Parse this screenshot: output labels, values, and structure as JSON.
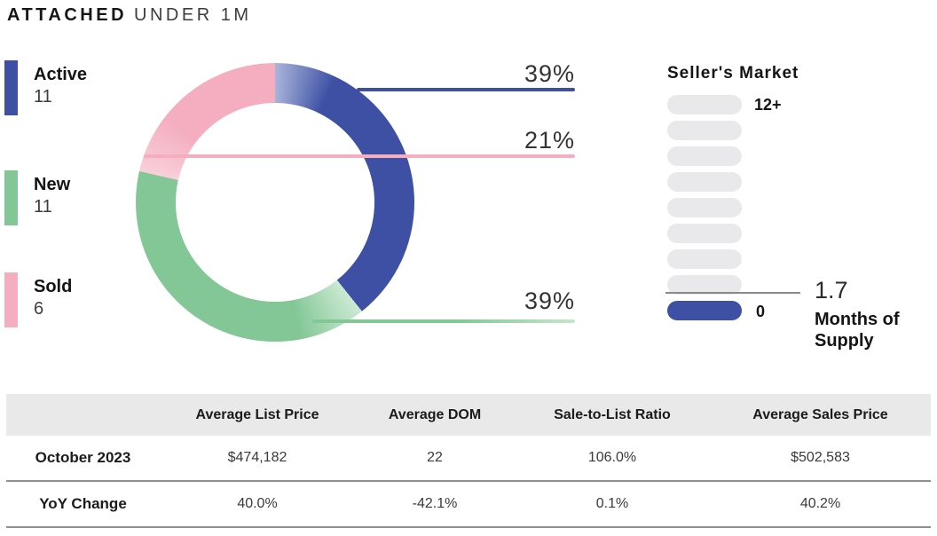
{
  "title": {
    "primary": "ATTACHED",
    "secondary": "UNDER 1M"
  },
  "legend": {
    "items": [
      {
        "label": "Active",
        "value": "11",
        "color": "#3d50a4"
      },
      {
        "label": "New",
        "value": "11",
        "color": "#82c795"
      },
      {
        "label": "Sold",
        "value": "6",
        "color": "#f4aec0"
      }
    ]
  },
  "donut": {
    "callouts": [
      {
        "label": "39%",
        "series": "Active",
        "color": "#3d50a4"
      },
      {
        "label": "21%",
        "series": "Sold",
        "color": "#f4aec0"
      },
      {
        "label": "39%",
        "series": "New",
        "color": "#82c795"
      }
    ]
  },
  "gauge": {
    "title": "Seller's Market",
    "max_label": "12+",
    "min_label": "0",
    "value": "1.7",
    "unit": "Months of Supply",
    "fill_color": "#3d50a4",
    "track_color": "#e9e9eb"
  },
  "table": {
    "headers": [
      "",
      "Average List Price",
      "Average DOM",
      "Sale-to-List Ratio",
      "Average Sales Price"
    ],
    "rows": [
      {
        "label": "October 2023",
        "cells": [
          "$474,182",
          "22",
          "106.0%",
          "$502,583"
        ]
      },
      {
        "label": "YoY Change",
        "cells": [
          "40.0%",
          "-42.1%",
          "0.1%",
          "40.2%"
        ]
      }
    ]
  },
  "chart_data": [
    {
      "type": "pie",
      "donut": true,
      "title": "Attached Under 1M — listing status share",
      "categories": [
        "Active",
        "New",
        "Sold"
      ],
      "values": [
        11,
        11,
        6
      ],
      "percent_labels": [
        "39%",
        "39%",
        "21%"
      ],
      "colors": [
        "#3d50a4",
        "#82c795",
        "#f4aec0"
      ],
      "legend_position": "left",
      "start_angle_deg": 0,
      "direction": "clockwise"
    },
    {
      "type": "bar",
      "title": "Seller's Market gauge",
      "categories": [
        "Months of Supply"
      ],
      "values": [
        1.7
      ],
      "ylim": [
        0,
        12
      ],
      "tick_labels": [
        "0",
        "12+"
      ],
      "annotation": "1.7 Months of Supply"
    },
    {
      "type": "table",
      "columns": [
        "",
        "Average List Price",
        "Average DOM",
        "Sale-to-List Ratio",
        "Average Sales Price"
      ],
      "rows": [
        [
          "October 2023",
          "$474,182",
          "22",
          "106.0%",
          "$502,583"
        ],
        [
          "YoY Change",
          "40.0%",
          "-42.1%",
          "0.1%",
          "40.2%"
        ]
      ]
    }
  ]
}
